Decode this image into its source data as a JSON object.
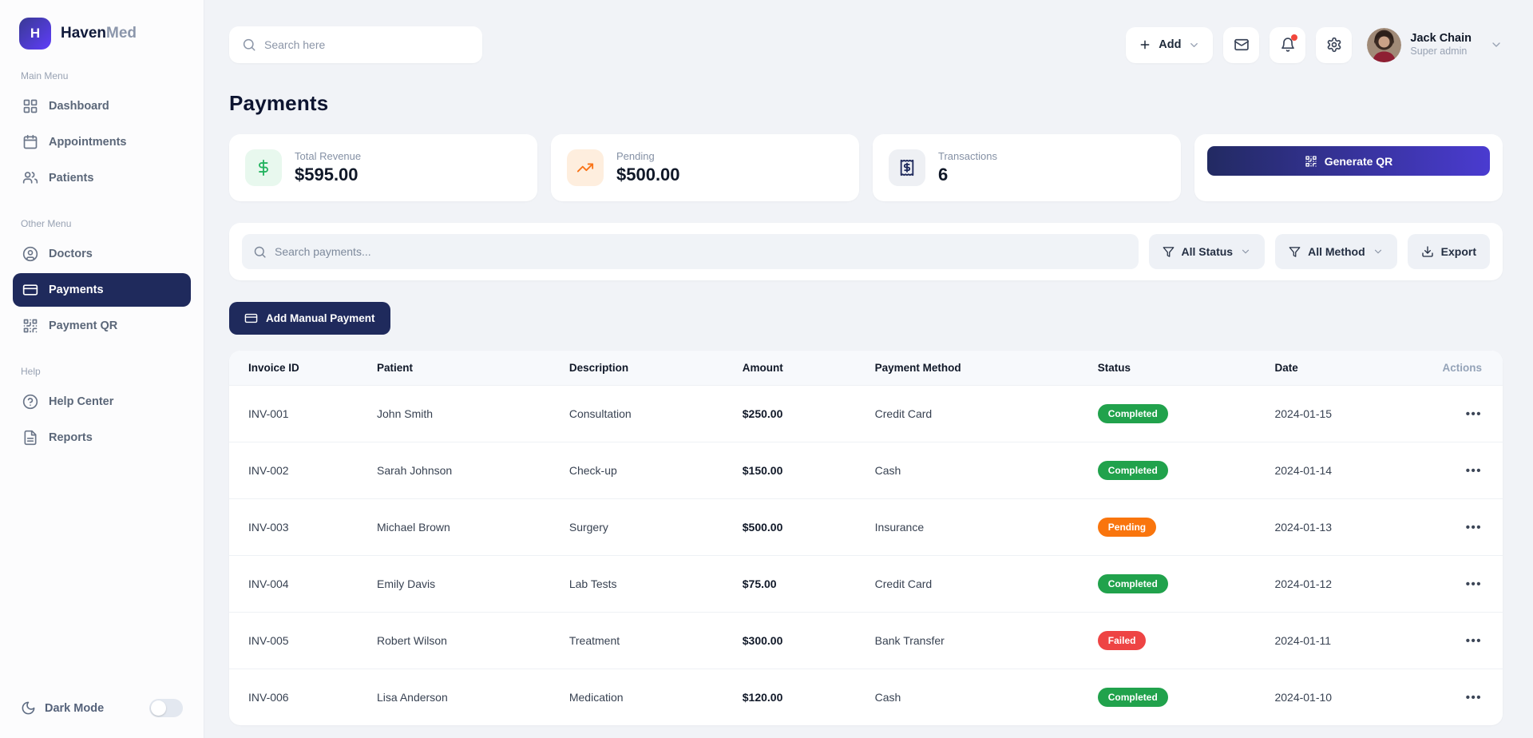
{
  "brand": {
    "logo_letter": "H",
    "name_primary": "Haven",
    "name_secondary": "Med"
  },
  "sidebar": {
    "sections": [
      {
        "label": "Main Menu",
        "items": [
          {
            "label": "Dashboard"
          },
          {
            "label": "Appointments"
          },
          {
            "label": "Patients"
          }
        ]
      },
      {
        "label": "Other Menu",
        "items": [
          {
            "label": "Doctors"
          },
          {
            "label": "Payments"
          },
          {
            "label": "Payment QR"
          }
        ]
      },
      {
        "label": "Help",
        "items": [
          {
            "label": "Help Center"
          },
          {
            "label": "Reports"
          }
        ]
      }
    ],
    "active_item": "Payments",
    "dark_mode_label": "Dark Mode",
    "dark_mode_on": false
  },
  "topbar": {
    "search_placeholder": "Search here",
    "add_label": "Add",
    "user": {
      "name": "Jack Chain",
      "role": "Super admin"
    }
  },
  "page": {
    "title": "Payments"
  },
  "stats": [
    {
      "label": "Total Revenue",
      "value": "$595.00",
      "icon": "dollar-icon"
    },
    {
      "label": "Pending",
      "value": "$500.00",
      "icon": "trending-up-icon"
    },
    {
      "label": "Transactions",
      "value": "6",
      "icon": "receipt-icon"
    }
  ],
  "actions": {
    "generate_qr_label": "Generate QR",
    "add_manual_payment_label": "Add Manual Payment",
    "search_payments_placeholder": "Search payments...",
    "status_filter_label": "All Status",
    "method_filter_label": "All Method",
    "export_label": "Export"
  },
  "table": {
    "columns": [
      "Invoice ID",
      "Patient",
      "Description",
      "Amount",
      "Payment Method",
      "Status",
      "Date",
      "Actions"
    ],
    "rows": [
      {
        "invoice_id": "INV-001",
        "patient": "John Smith",
        "description": "Consultation",
        "amount": "$250.00",
        "method": "Credit Card",
        "status": "Completed",
        "date": "2024-01-15"
      },
      {
        "invoice_id": "INV-002",
        "patient": "Sarah Johnson",
        "description": "Check-up",
        "amount": "$150.00",
        "method": "Cash",
        "status": "Completed",
        "date": "2024-01-14"
      },
      {
        "invoice_id": "INV-003",
        "patient": "Michael Brown",
        "description": "Surgery",
        "amount": "$500.00",
        "method": "Insurance",
        "status": "Pending",
        "date": "2024-01-13"
      },
      {
        "invoice_id": "INV-004",
        "patient": "Emily Davis",
        "description": "Lab Tests",
        "amount": "$75.00",
        "method": "Credit Card",
        "status": "Completed",
        "date": "2024-01-12"
      },
      {
        "invoice_id": "INV-005",
        "patient": "Robert Wilson",
        "description": "Treatment",
        "amount": "$300.00",
        "method": "Bank Transfer",
        "status": "Failed",
        "date": "2024-01-11"
      },
      {
        "invoice_id": "INV-006",
        "patient": "Lisa Anderson",
        "description": "Medication",
        "amount": "$120.00",
        "method": "Cash",
        "status": "Completed",
        "date": "2024-01-10"
      }
    ]
  },
  "colors": {
    "accent_navy": "#1f2a5c",
    "qr_gradient": [
      "#222a62",
      "#4a3bd0"
    ],
    "logo_gradient": [
      "#3d3a9e",
      "#5b3df0"
    ],
    "status": {
      "Completed": "#21a24c",
      "Pending": "#f9750d",
      "Failed": "#ee4444"
    },
    "revenue_icon": "#22b35e",
    "revenue_icon_bg": "#e8f8ee",
    "pending_icon": "#f97316",
    "pending_icon_bg": "#feeede",
    "transactions_icon": "#1f2a5c",
    "transactions_icon_bg": "#eef0f4",
    "notification_dot": "#f1473c"
  }
}
